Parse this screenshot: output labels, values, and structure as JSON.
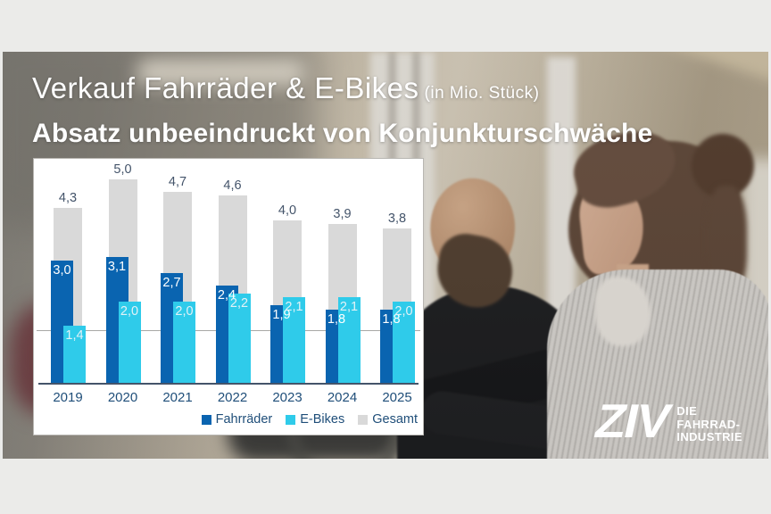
{
  "title": {
    "line1": "Verkauf Fahrräder & E-Bikes",
    "unit": "(in Mio. Stück)",
    "line2": "Absatz unbeeindruckt von Konjunkturschwäche"
  },
  "chart_data": {
    "type": "bar",
    "title": "Verkauf Fahrräder & E-Bikes (in Mio. Stück)",
    "categories": [
      "2019",
      "2020",
      "2021",
      "2022",
      "2023",
      "2024",
      "2025"
    ],
    "series": [
      {
        "name": "Fahrräder",
        "color": "#0a64b0",
        "values": [
          3.0,
          3.1,
          2.7,
          2.4,
          1.9,
          1.8,
          1.8
        ],
        "labels": [
          "3,0",
          "3,1",
          "2,7",
          "2,4",
          "1,9",
          "1,8",
          "1,8"
        ]
      },
      {
        "name": "E-Bikes",
        "color": "#2fcbea",
        "values": [
          1.4,
          2.0,
          2.0,
          2.2,
          2.1,
          2.1,
          2.0
        ],
        "labels": [
          "1,4",
          "2,0",
          "2,0",
          "2,2",
          "2,1",
          "2,1",
          "2,0"
        ]
      },
      {
        "name": "Gesamt",
        "color": "#d9d9d9",
        "values": [
          4.3,
          5.0,
          4.7,
          4.6,
          4.0,
          3.9,
          3.8
        ],
        "labels": [
          "4,3",
          "5,0",
          "4,7",
          "4,6",
          "4,0",
          "3,9",
          "3,8"
        ]
      }
    ],
    "ylim": [
      0,
      5.5
    ],
    "unit": "Mio. Stück",
    "grid": false,
    "legend_position": "bottom-right",
    "accent_colors": {
      "fahrraeder": "#0a64b0",
      "ebikes": "#2fcbea",
      "gesamt": "#d9d9d9",
      "text_dark_blue": "#1f4e79",
      "text_slate": "#44546a"
    }
  },
  "logo": {
    "brand": "ZIV",
    "tagline": [
      "DIE",
      "FAHRRAD-",
      "INDUSTRIE"
    ]
  }
}
